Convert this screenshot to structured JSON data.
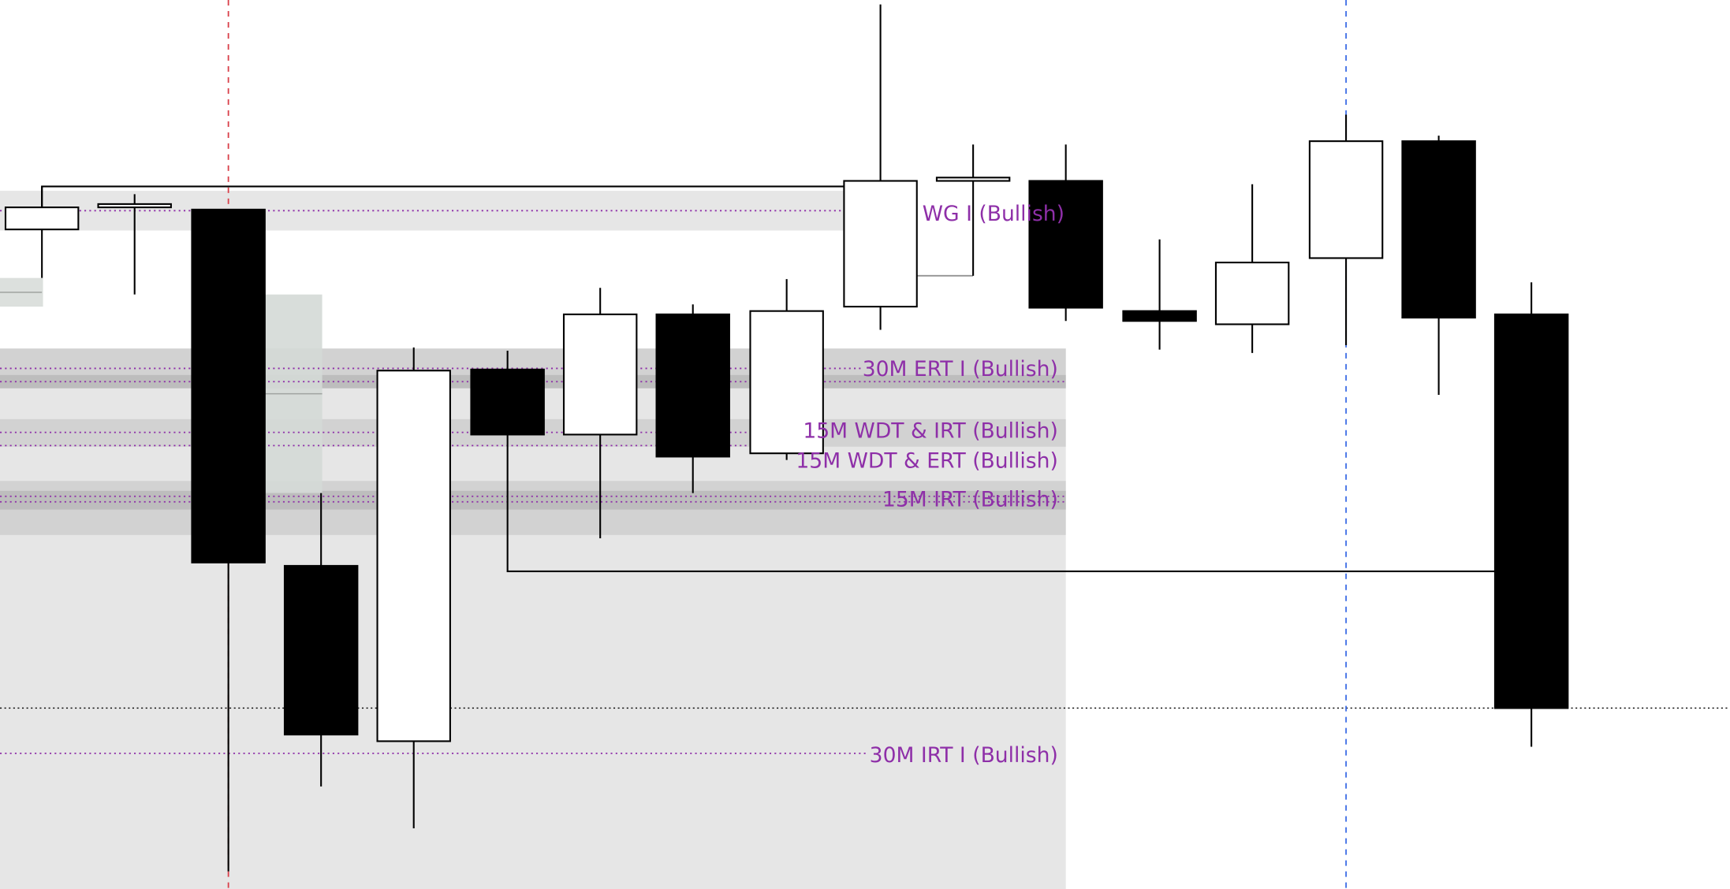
{
  "chart_data": {
    "type": "candlestick",
    "title": "",
    "xlabel": "",
    "ylabel": "",
    "grid": false,
    "candles": [
      {
        "direction": "bullish"
      },
      {
        "direction": "bullish"
      },
      {
        "direction": "bearish"
      },
      {
        "direction": "bearish"
      },
      {
        "direction": "bullish"
      },
      {
        "direction": "bearish"
      },
      {
        "direction": "bullish"
      },
      {
        "direction": "bearish"
      },
      {
        "direction": "bullish"
      },
      {
        "direction": "bullish"
      },
      {
        "direction": "bullish"
      },
      {
        "direction": "bearish"
      },
      {
        "direction": "bearish"
      },
      {
        "direction": "bullish"
      },
      {
        "direction": "bullish"
      },
      {
        "direction": "bearish"
      },
      {
        "direction": "bearish"
      }
    ],
    "zone_labels": [
      "WG I (Bullish)",
      "30M ERT I (Bullish)",
      "15M WDT & IRT (Bullish)",
      "15M WDT & ERT (Bullish)",
      "15M IRT (Bullish)",
      "30M IRT I (Bullish)"
    ]
  },
  "colors": {
    "bullish_body": "#ffffff",
    "bearish_body": "#000000",
    "zone_label": "#8e2fa8",
    "zone_fill": "#e6e6e6",
    "zone_band": "#d0d0d0",
    "vertical_marker_red": "#d9404a",
    "vertical_marker_blue": "#3f6fe6"
  }
}
